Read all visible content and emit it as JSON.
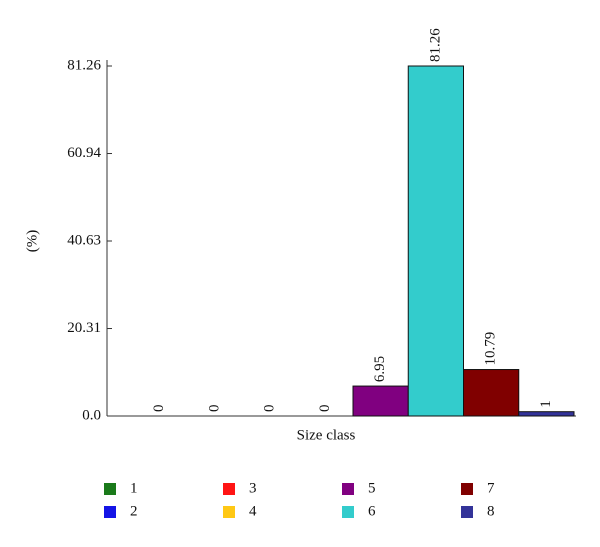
{
  "chart_data": {
    "type": "bar",
    "x_label": "Size class",
    "y_label": "(%)",
    "categories": [
      "1",
      "2",
      "3",
      "4",
      "5",
      "6",
      "7",
      "8"
    ],
    "colors": [
      "#1a7a1a",
      "#1414e6",
      "#ff1414",
      "#ffc814",
      "#800080",
      "#33cccc",
      "#800000",
      "#333399"
    ],
    "values": [
      0,
      0,
      0,
      0,
      6.95,
      81.26,
      10.79,
      1
    ],
    "ylim": [
      0,
      81.26
    ],
    "yticks": [
      {
        "value": 0,
        "label": "0.0"
      },
      20.31,
      40.63,
      60.94,
      81.26
    ],
    "legend": "bottom"
  }
}
